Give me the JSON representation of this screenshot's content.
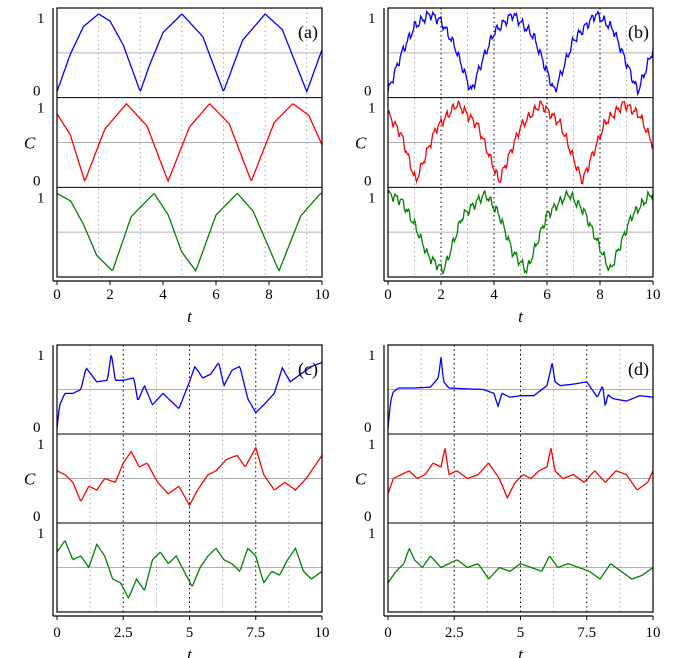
{
  "chart_data": [
    {
      "type": "line",
      "panel_label": "(a)",
      "xlabel": "t",
      "ylabel": "C",
      "xlim": [
        0,
        10
      ],
      "ylim": [
        0,
        1
      ],
      "x_ticks": [
        0,
        2,
        4,
        6,
        8,
        10
      ],
      "x_tick_labels": [
        "0",
        "2",
        "4",
        "6",
        "8",
        "10"
      ],
      "y_tick_labels": [
        "1",
        "0"
      ],
      "reference_line_y": 0.5,
      "marker_lines_x": [
        1.5708,
        3.1416,
        4.7124,
        6.2832,
        7.854,
        9.4248
      ],
      "series": [
        {
          "color": "#0000ff",
          "x": [
            0,
            0.5,
            1,
            1.5708,
            2,
            2.5,
            3.1416,
            3.5,
            4,
            4.7124,
            5.5,
            6.2832,
            7,
            7.854,
            8.5,
            9.4248,
            10
          ],
          "y": [
            0,
            0.48,
            0.84,
            1.0,
            0.91,
            0.6,
            0,
            0.35,
            0.76,
            1.0,
            0.71,
            0,
            0.66,
            1.0,
            0.8,
            0,
            0.54
          ]
        },
        {
          "color": "#ff0000",
          "x": [
            0,
            0.5,
            1.0472,
            1.8,
            2.618,
            3.4,
            4.1888,
            5,
            5.7596,
            6.5,
            7.3304,
            8.2,
            8.9012,
            9.5,
            10
          ],
          "y": [
            0.87,
            0.6,
            0,
            0.67,
            1.0,
            0.71,
            0,
            0.7,
            1.0,
            0.74,
            0,
            0.76,
            1.0,
            0.85,
            0.47
          ]
        },
        {
          "color": "#008000",
          "x": [
            0,
            0.52,
            1.0,
            1.5,
            2.0944,
            2.8,
            3.6652,
            4.2,
            4.7,
            5.236,
            6.0,
            6.8068,
            7.4,
            8.3776,
            9.2,
            9.9484,
            10
          ],
          "y": [
            1.0,
            0.9,
            0.6,
            0.2,
            0,
            0.7,
            1.0,
            0.72,
            0.25,
            0,
            0.72,
            1.0,
            0.77,
            0,
            0.71,
            1.0,
            0.99
          ]
        }
      ]
    },
    {
      "type": "line",
      "panel_label": "(b)",
      "xlabel": "t",
      "ylabel": "C",
      "xlim": [
        0,
        10
      ],
      "ylim": [
        0,
        1
      ],
      "x_ticks": [
        0,
        2,
        4,
        6,
        8,
        10
      ],
      "x_tick_labels": [
        "0",
        "2",
        "4",
        "6",
        "8",
        "10"
      ],
      "y_tick_labels": [
        "1",
        "0"
      ],
      "reference_line_y": 0.5,
      "marker_lines_x": [
        1,
        2,
        3,
        4,
        5,
        6,
        7,
        8,
        9
      ],
      "series": [
        {
          "color": "#0000ff",
          "x": [
            0,
            0.5,
            1,
            1.5708,
            2,
            2.5,
            3.1416,
            3.5,
            4,
            4.7124,
            5.5,
            6.2832,
            7,
            7.854,
            8.5,
            9.4248,
            10
          ],
          "y": [
            0,
            0.48,
            0.84,
            1.0,
            0.91,
            0.6,
            0,
            0.35,
            0.76,
            1.0,
            0.71,
            0,
            0.66,
            1.0,
            0.8,
            0,
            0.54
          ],
          "noise": 0.05
        },
        {
          "color": "#ff0000",
          "x": [
            0,
            0.5,
            1.0472,
            1.8,
            2.618,
            3.4,
            4.1888,
            5,
            5.7596,
            6.5,
            7.3304,
            8.2,
            8.9012,
            9.5,
            10
          ],
          "y": [
            0.87,
            0.6,
            0,
            0.67,
            1.0,
            0.71,
            0,
            0.7,
            1.0,
            0.74,
            0,
            0.76,
            1.0,
            0.85,
            0.47
          ],
          "noise": 0.05
        },
        {
          "color": "#008000",
          "x": [
            0,
            0.52,
            1.0,
            1.5,
            2.0944,
            2.8,
            3.6652,
            4.2,
            4.7,
            5.236,
            6.0,
            6.8068,
            7.4,
            8.3776,
            9.2,
            9.9484,
            10
          ],
          "y": [
            1.0,
            0.9,
            0.6,
            0.2,
            0,
            0.7,
            1.0,
            0.72,
            0.25,
            0,
            0.72,
            1.0,
            0.77,
            0,
            0.71,
            1.0,
            0.99
          ],
          "noise": 0.05
        }
      ]
    },
    {
      "type": "line",
      "panel_label": "(c)",
      "xlabel": "t",
      "ylabel": "C",
      "xlim": [
        0,
        10
      ],
      "ylim": [
        0,
        1
      ],
      "x_ticks": [
        0,
        2.5,
        5,
        7.5,
        10
      ],
      "x_tick_labels": [
        "0",
        "2.5",
        "5",
        "7.5",
        "10"
      ],
      "y_tick_labels": [
        "1",
        "0"
      ],
      "reference_line_y": 0.5,
      "marker_lines_x": [
        1.25,
        2.5,
        3.75,
        5,
        6.25,
        7.5,
        8.75
      ],
      "series": [
        {
          "color": "#0000ff",
          "x": [
            0,
            0.1,
            0.3,
            0.6,
            0.9,
            1.1,
            1.5,
            1.9,
            2.05,
            2.2,
            2.5,
            2.9,
            3.05,
            3.3,
            3.6,
            4.0,
            4.3,
            4.6,
            5.0,
            5.2,
            5.5,
            5.8,
            6.1,
            6.3,
            6.6,
            6.9,
            7.2,
            7.5,
            7.8,
            8.2,
            8.5,
            8.8,
            9.2,
            9.6,
            10
          ],
          "y": [
            0,
            0.3,
            0.45,
            0.45,
            0.5,
            0.78,
            0.6,
            0.62,
            0.97,
            0.62,
            0.62,
            0.65,
            0.35,
            0.55,
            0.3,
            0.45,
            0.35,
            0.25,
            0.6,
            0.8,
            0.65,
            0.7,
            0.85,
            0.55,
            0.75,
            0.8,
            0.38,
            0.2,
            0.3,
            0.45,
            0.78,
            0.6,
            0.7,
            0.8,
            0.85
          ]
        },
        {
          "color": "#ff0000",
          "x": [
            0,
            0.3,
            0.6,
            0.9,
            1.2,
            1.5,
            1.8,
            2.2,
            2.5,
            2.8,
            3.1,
            3.4,
            3.8,
            4.2,
            4.6,
            5.0,
            5.3,
            5.7,
            6.0,
            6.4,
            6.8,
            7.1,
            7.5,
            7.8,
            8.2,
            8.6,
            9.0,
            9.4,
            9.7,
            10
          ],
          "y": [
            0.6,
            0.55,
            0.45,
            0.2,
            0.4,
            0.35,
            0.5,
            0.45,
            0.7,
            0.85,
            0.65,
            0.7,
            0.45,
            0.3,
            0.4,
            0.15,
            0.35,
            0.55,
            0.6,
            0.75,
            0.8,
            0.65,
            0.9,
            0.55,
            0.35,
            0.45,
            0.35,
            0.5,
            0.65,
            0.8
          ]
        },
        {
          "color": "#008000",
          "x": [
            0,
            0.3,
            0.6,
            0.9,
            1.2,
            1.5,
            1.8,
            2.1,
            2.4,
            2.7,
            3.0,
            3.3,
            3.6,
            3.9,
            4.2,
            4.5,
            4.8,
            5.1,
            5.4,
            5.7,
            6.0,
            6.3,
            6.6,
            6.9,
            7.2,
            7.5,
            7.8,
            8.1,
            8.4,
            8.7,
            9.0,
            9.3,
            9.6,
            10
          ],
          "y": [
            0.7,
            0.85,
            0.6,
            0.65,
            0.5,
            0.8,
            0.65,
            0.35,
            0.3,
            0.1,
            0.35,
            0.2,
            0.6,
            0.7,
            0.55,
            0.65,
            0.45,
            0.25,
            0.5,
            0.65,
            0.75,
            0.6,
            0.55,
            0.45,
            0.75,
            0.65,
            0.3,
            0.45,
            0.4,
            0.6,
            0.75,
            0.45,
            0.35,
            0.45
          ]
        }
      ]
    },
    {
      "type": "line",
      "panel_label": "(d)",
      "xlabel": "t",
      "ylabel": "C",
      "xlim": [
        0,
        10
      ],
      "ylim": [
        0,
        1
      ],
      "x_ticks": [
        0,
        2.5,
        5,
        7.5,
        10
      ],
      "x_tick_labels": [
        "0",
        "2.5",
        "5",
        "7.5",
        "10"
      ],
      "y_tick_labels": [
        "1",
        "0"
      ],
      "reference_line_y": 0.5,
      "marker_lines_x": [
        1.25,
        2.5,
        3.75,
        5,
        6.25,
        7.5,
        8.75
      ],
      "series": [
        {
          "color": "#0000ff",
          "x": [
            0,
            0.1,
            0.2,
            0.4,
            1.0,
            1.6,
            1.9,
            2.0,
            2.1,
            2.3,
            2.8,
            3.6,
            4.0,
            4.15,
            4.3,
            4.6,
            5.0,
            5.5,
            6.0,
            6.2,
            6.3,
            6.5,
            7.0,
            7.5,
            7.9,
            8.1,
            8.2,
            8.3,
            8.5,
            9.0,
            9.5,
            10
          ],
          "y": [
            0,
            0.35,
            0.47,
            0.52,
            0.52,
            0.53,
            0.65,
            0.92,
            0.6,
            0.52,
            0.51,
            0.5,
            0.45,
            0.28,
            0.45,
            0.4,
            0.42,
            0.42,
            0.55,
            0.85,
            0.6,
            0.55,
            0.57,
            0.6,
            0.4,
            0.55,
            0.28,
            0.43,
            0.38,
            0.35,
            0.42,
            0.4
          ]
        },
        {
          "color": "#ff0000",
          "x": [
            0,
            0.2,
            0.5,
            0.8,
            1.1,
            1.4,
            1.7,
            2.0,
            2.15,
            2.3,
            2.6,
            3.0,
            3.4,
            3.8,
            4.2,
            4.5,
            4.8,
            5.1,
            5.4,
            5.7,
            6.0,
            6.15,
            6.3,
            6.6,
            7.0,
            7.4,
            7.8,
            8.2,
            8.6,
            9.0,
            9.4,
            9.8,
            10
          ],
          "y": [
            0.3,
            0.5,
            0.55,
            0.6,
            0.5,
            0.55,
            0.7,
            0.65,
            0.9,
            0.55,
            0.6,
            0.5,
            0.55,
            0.7,
            0.5,
            0.25,
            0.45,
            0.55,
            0.5,
            0.6,
            0.65,
            0.9,
            0.6,
            0.5,
            0.55,
            0.45,
            0.6,
            0.45,
            0.6,
            0.55,
            0.35,
            0.45,
            0.6
          ]
        },
        {
          "color": "#008000",
          "x": [
            0,
            0.3,
            0.6,
            0.8,
            1.0,
            1.3,
            1.6,
            2.0,
            2.3,
            2.6,
            3.0,
            3.4,
            3.8,
            4.2,
            4.6,
            5.0,
            5.4,
            5.8,
            6.1,
            6.4,
            6.8,
            7.2,
            7.6,
            8.0,
            8.4,
            8.8,
            9.2,
            9.6,
            10
          ],
          "y": [
            0.3,
            0.45,
            0.55,
            0.75,
            0.6,
            0.5,
            0.65,
            0.5,
            0.55,
            0.6,
            0.5,
            0.55,
            0.35,
            0.5,
            0.45,
            0.55,
            0.5,
            0.45,
            0.65,
            0.5,
            0.55,
            0.5,
            0.45,
            0.35,
            0.55,
            0.45,
            0.35,
            0.4,
            0.5
          ]
        }
      ]
    }
  ]
}
